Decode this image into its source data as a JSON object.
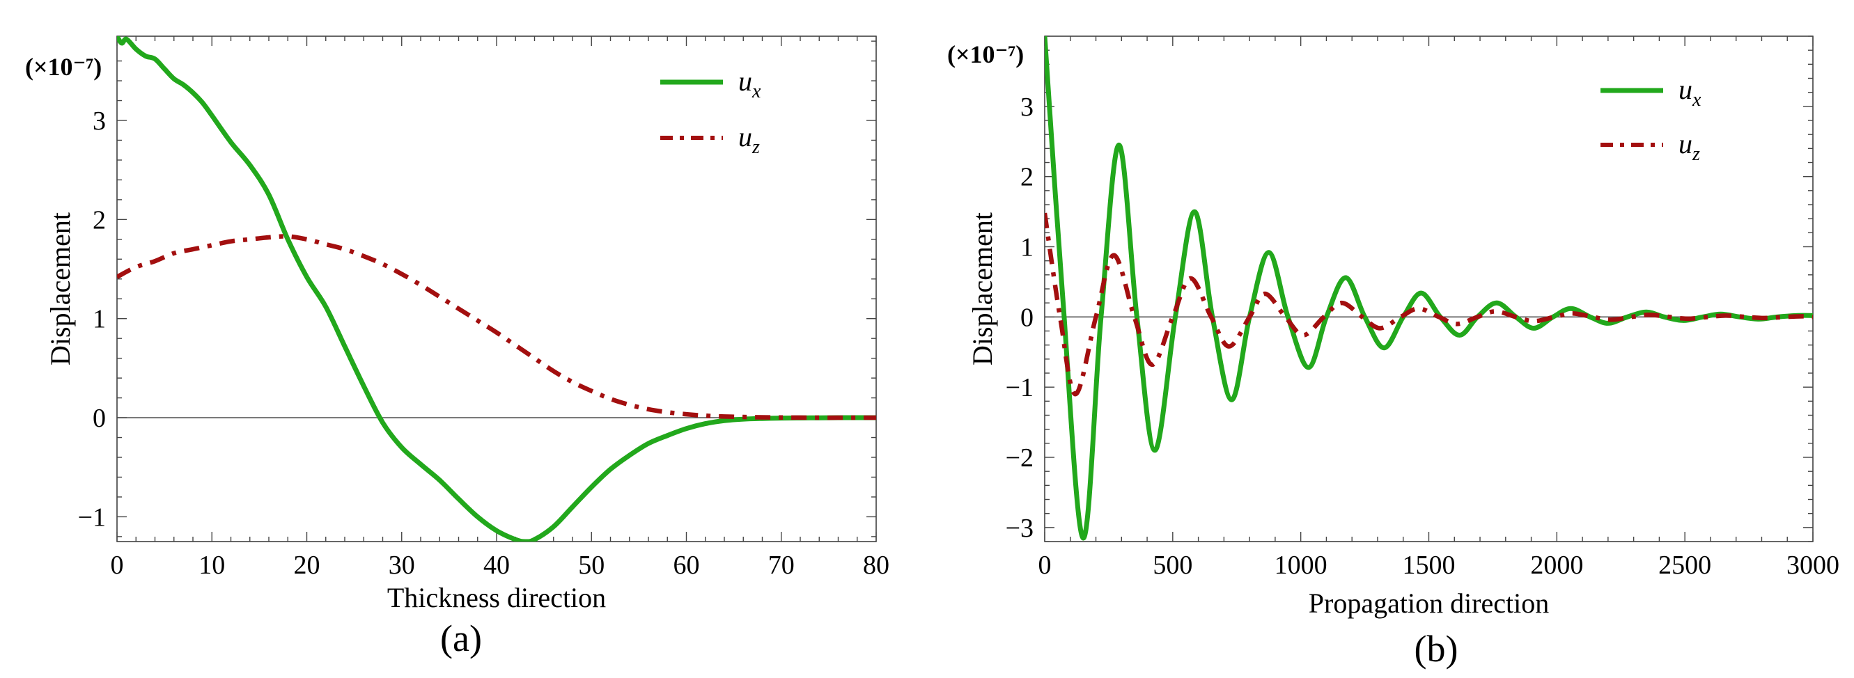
{
  "chart_data": [
    {
      "id": "a",
      "type": "line",
      "caption": "(a)",
      "xlabel": "Thickness direction",
      "ylabel": "Displacement",
      "scale_label": "(×10⁻⁷)",
      "xlim": [
        0,
        80
      ],
      "ylim": [
        -1.25,
        3.85
      ],
      "xticks": [
        0,
        10,
        20,
        30,
        40,
        50,
        60,
        70,
        80
      ],
      "yticks": [
        -1,
        0,
        1,
        2,
        3
      ],
      "ytick_labels": [
        "−1",
        "0",
        "1",
        "2",
        "3"
      ],
      "legend": [
        {
          "name": "u",
          "sub": "x",
          "color": "#22a81c",
          "dash": "solid"
        },
        {
          "name": "u",
          "sub": "z",
          "color": "#a30f0f",
          "dash": "dashdot"
        }
      ],
      "series": [
        {
          "name": "u_x",
          "color": "#22a81c",
          "dash": "solid",
          "x": [
            0,
            0.5,
            1,
            2,
            3,
            4,
            5,
            6,
            7,
            8,
            9,
            10,
            12,
            14,
            16,
            18,
            20,
            22,
            24,
            26,
            28,
            30,
            32,
            34,
            36,
            38,
            40,
            42,
            43,
            44,
            46,
            48,
            50,
            52,
            54,
            56,
            58,
            60,
            62,
            64,
            66,
            68,
            70,
            72,
            74,
            76,
            78,
            80
          ],
          "values": [
            3.85,
            3.78,
            3.82,
            3.72,
            3.65,
            3.62,
            3.52,
            3.42,
            3.36,
            3.28,
            3.18,
            3.05,
            2.78,
            2.55,
            2.25,
            1.8,
            1.42,
            1.12,
            0.72,
            0.32,
            -0.05,
            -0.3,
            -0.47,
            -0.63,
            -0.82,
            -1.0,
            -1.14,
            -1.23,
            -1.25,
            -1.23,
            -1.1,
            -0.9,
            -0.7,
            -0.52,
            -0.38,
            -0.26,
            -0.18,
            -0.11,
            -0.06,
            -0.03,
            -0.015,
            -0.008,
            -0.004,
            -0.002,
            -0.001,
            0,
            0,
            0
          ]
        },
        {
          "name": "u_z",
          "color": "#a30f0f",
          "dash": "dashdot",
          "x": [
            0,
            2,
            4,
            6,
            8,
            10,
            12,
            14,
            16,
            18,
            20,
            22,
            24,
            26,
            28,
            30,
            32,
            34,
            36,
            38,
            40,
            42,
            44,
            46,
            48,
            50,
            52,
            54,
            56,
            58,
            60,
            62,
            64,
            66,
            68,
            70,
            72,
            74,
            76,
            78,
            80
          ],
          "values": [
            1.42,
            1.52,
            1.58,
            1.66,
            1.7,
            1.74,
            1.78,
            1.8,
            1.82,
            1.83,
            1.8,
            1.75,
            1.7,
            1.63,
            1.55,
            1.45,
            1.34,
            1.22,
            1.1,
            0.98,
            0.86,
            0.73,
            0.6,
            0.47,
            0.36,
            0.27,
            0.19,
            0.13,
            0.085,
            0.055,
            0.035,
            0.02,
            0.012,
            0.007,
            0.004,
            0.002,
            0.001,
            0,
            0,
            0,
            0
          ]
        }
      ]
    },
    {
      "id": "b",
      "type": "line",
      "caption": "(b)",
      "xlabel": "Propagation direction",
      "ylabel": "Displacement",
      "scale_label": "(×10⁻⁷)",
      "xlim": [
        0,
        3000
      ],
      "ylim": [
        -3.2,
        4.0
      ],
      "xticks": [
        0,
        500,
        1000,
        1500,
        2000,
        2500,
        3000
      ],
      "yticks": [
        -3,
        -2,
        -1,
        0,
        1,
        2,
        3
      ],
      "ytick_labels": [
        "−3",
        "−2",
        "−1",
        "0",
        "1",
        "2",
        "3"
      ],
      "legend": [
        {
          "name": "u",
          "sub": "x",
          "color": "#22a81c",
          "dash": "solid"
        },
        {
          "name": "u",
          "sub": "z",
          "color": "#a30f0f",
          "dash": "dashdot"
        }
      ],
      "series": [
        {
          "name": "u_x",
          "color": "#22a81c",
          "dash": "solid",
          "x": [
            0,
            70,
            150,
            220,
            290,
            360,
            430,
            510,
            585,
            655,
            730,
            800,
            875,
            950,
            1030,
            1100,
            1175,
            1250,
            1325,
            1400,
            1470,
            1545,
            1620,
            1690,
            1765,
            1840,
            1910,
            1985,
            2055,
            2130,
            2200,
            2275,
            2350,
            2420,
            2495,
            2570,
            2640,
            2715,
            2790,
            2860,
            2935,
            3000
          ],
          "values": [
            4.0,
            0.3,
            -3.15,
            0.0,
            2.45,
            0.0,
            -1.9,
            0.0,
            1.5,
            0.0,
            -1.18,
            0.0,
            0.92,
            0.0,
            -0.72,
            0.0,
            0.56,
            0.0,
            -0.44,
            0.0,
            0.34,
            0.0,
            -0.26,
            0.0,
            0.2,
            0.0,
            -0.16,
            0.0,
            0.12,
            0.0,
            -0.09,
            0.0,
            0.07,
            0.0,
            -0.05,
            0.0,
            0.04,
            0.0,
            -0.03,
            0.0,
            0.02,
            0.02
          ]
        },
        {
          "name": "u_z",
          "color": "#a30f0f",
          "dash": "dashdot",
          "x": [
            0,
            60,
            120,
            200,
            270,
            350,
            420,
            500,
            570,
            650,
            720,
            800,
            860,
            940,
            1010,
            1090,
            1160,
            1240,
            1310,
            1390,
            1460,
            1540,
            1610,
            1690,
            1760,
            1840,
            1910,
            1990,
            2060,
            2140,
            2210,
            2290,
            2360,
            2440,
            2510,
            2590,
            2660,
            2740,
            2810,
            2890,
            2960,
            3000
          ],
          "values": [
            1.48,
            0.0,
            -1.1,
            0.0,
            0.88,
            0.0,
            -0.68,
            0.0,
            0.55,
            0.0,
            -0.42,
            0.0,
            0.33,
            0.0,
            -0.26,
            0.0,
            0.2,
            0.0,
            -0.16,
            0.0,
            0.12,
            0.0,
            -0.1,
            0.0,
            0.08,
            0.0,
            -0.06,
            0.0,
            0.05,
            0.0,
            -0.04,
            0.0,
            0.03,
            0.0,
            -0.025,
            0.0,
            0.02,
            0.0,
            -0.015,
            0.0,
            0.01,
            0.0
          ]
        }
      ]
    }
  ]
}
